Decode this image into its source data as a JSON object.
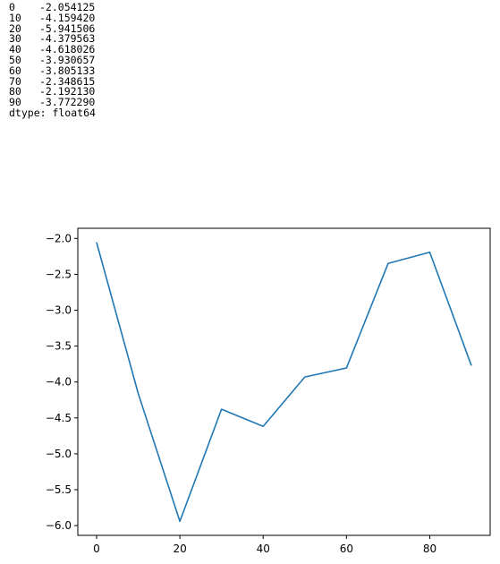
{
  "series_output": {
    "rows": [
      {
        "index": "0",
        "value": "-2.054125"
      },
      {
        "index": "10",
        "value": "-4.159420"
      },
      {
        "index": "20",
        "value": "-5.941506"
      },
      {
        "index": "30",
        "value": "-4.379563"
      },
      {
        "index": "40",
        "value": "-4.618026"
      },
      {
        "index": "50",
        "value": "-3.930657"
      },
      {
        "index": "60",
        "value": "-3.805133"
      },
      {
        "index": "70",
        "value": "-2.348615"
      },
      {
        "index": "80",
        "value": "-2.192130"
      },
      {
        "index": "90",
        "value": "-3.772290"
      }
    ],
    "dtype": "dtype: float64"
  },
  "chart_data": {
    "type": "line",
    "x": [
      0,
      10,
      20,
      30,
      40,
      50,
      60,
      70,
      80,
      90
    ],
    "series": [
      {
        "values": [
          -2.054125,
          -4.15942,
          -5.941506,
          -4.379563,
          -4.618026,
          -3.930657,
          -3.805133,
          -2.348615,
          -2.19213,
          -3.77229
        ],
        "color": "#1f77b4"
      }
    ],
    "xlim": [
      -4.5,
      94.5
    ],
    "ylim": [
      -6.136,
      -1.859
    ],
    "xticks": [
      0,
      20,
      40,
      60,
      80
    ],
    "xtick_labels": [
      "0",
      "20",
      "40",
      "60",
      "80"
    ],
    "yticks": [
      -2.0,
      -2.5,
      -3.0,
      -3.5,
      -4.0,
      -4.5,
      -5.0,
      -5.5,
      -6.0
    ],
    "ytick_labels": [
      "−2.0",
      "−2.5",
      "−3.0",
      "−3.5",
      "−4.0",
      "−4.5",
      "−5.0",
      "−5.5",
      "−6.0"
    ],
    "title": "",
    "xlabel": "",
    "ylabel": "",
    "grid": false,
    "legend": false
  }
}
